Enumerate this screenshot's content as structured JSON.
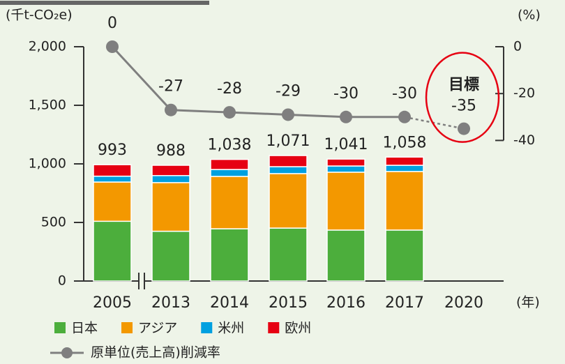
{
  "chart_data": {
    "type": "stacked-bar-line",
    "y_label": "(千t-CO₂e)",
    "y2_label": "(%)",
    "x_label": "(年)",
    "categories": [
      "2005",
      "2013",
      "2014",
      "2015",
      "2016",
      "2017",
      "2020"
    ],
    "series": [
      {
        "name": "日本",
        "color": "#4cae3c",
        "values": [
          510,
          425,
          446,
          452,
          435,
          435,
          null
        ]
      },
      {
        "name": "アジア",
        "color": "#f39800",
        "values": [
          335,
          415,
          447,
          465,
          494,
          500,
          null
        ]
      },
      {
        "name": "米州",
        "color": "#00a0e0",
        "values": [
          50,
          60,
          59,
          59,
          53,
          53,
          null
        ]
      },
      {
        "name": "欧州",
        "color": "#e60012",
        "values": [
          98,
          88,
          86,
          95,
          59,
          70,
          null
        ]
      },
      {
        "name": "原単位(売上高)削減率",
        "color": "#7f7f7f",
        "axis": "y2",
        "values": [
          0,
          -27,
          -28,
          -29,
          -30,
          -30,
          -35
        ]
      }
    ],
    "totals": [
      993,
      988,
      1038,
      1071,
      1041,
      1058,
      null
    ],
    "total_labels": [
      "993",
      "988",
      "1,038",
      "1,071",
      "1,041",
      "1,058",
      null
    ],
    "annotation": "目標",
    "ylim": [
      0,
      2000
    ],
    "yticks": [
      0,
      500,
      {
        "value": 1000,
        "label": "1,000"
      },
      {
        "value": 1500,
        "label": "1,500"
      },
      {
        "value": 2000,
        "label": "2,000"
      }
    ],
    "y2lim": [
      -100,
      0
    ],
    "y2ticks": [
      0,
      -20,
      -40
    ]
  }
}
